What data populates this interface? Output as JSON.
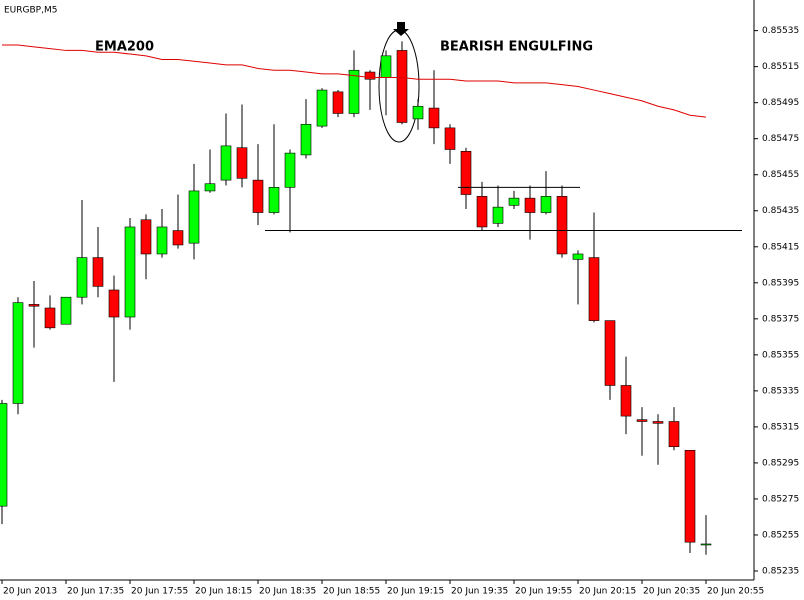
{
  "chart_data": {
    "type": "candlestick",
    "title": "EURGBP,M5",
    "categories": [
      "20 Jun 2013",
      null,
      null,
      null,
      "20 Jun 17:35",
      null,
      null,
      null,
      "20 Jun 17:55",
      null,
      null,
      null,
      "20 Jun 18:15",
      null,
      null,
      null,
      "20 Jun 18:35",
      null,
      null,
      null,
      "20 Jun 18:55",
      null,
      null,
      null,
      "20 Jun 19:15",
      null,
      null,
      null,
      "20 Jun 19:35",
      null,
      null,
      null,
      "20 Jun 19:55",
      null,
      null,
      null,
      "20 Jun 20:15",
      null,
      null,
      null,
      "20 Jun 20:35",
      null,
      null,
      null,
      "20 Jun 20:55"
    ],
    "open": [
      0.85271,
      0.85328,
      0.85383,
      0.85381,
      0.85372,
      0.85387,
      0.85409,
      0.85391,
      0.85376,
      0.8543,
      0.85411,
      0.85424,
      0.85417,
      0.85446,
      0.85452,
      0.8547,
      0.85452,
      0.85434,
      0.85448,
      0.85466,
      0.85482,
      0.85501,
      0.85489,
      0.85512,
      0.85509,
      0.85524,
      0.85486,
      0.85492,
      0.85481,
      0.85468,
      0.85443,
      0.85428,
      0.85438,
      0.85442,
      0.85434,
      0.85443,
      0.85408,
      0.85409,
      0.85374,
      0.85338,
      0.85319,
      0.85318,
      0.85318,
      0.85302,
      0.8525
    ],
    "high": [
      0.8533,
      0.85387,
      0.85396,
      0.85388,
      0.85387,
      0.85441,
      0.85426,
      0.85399,
      0.85431,
      0.85433,
      0.85436,
      0.85444,
      0.85461,
      0.85469,
      0.85489,
      0.85494,
      0.85472,
      0.85483,
      0.85469,
      0.85497,
      0.85503,
      0.85502,
      0.85524,
      0.85513,
      0.85524,
      0.85529,
      0.85497,
      0.85513,
      0.85483,
      0.8547,
      0.85451,
      0.85449,
      0.85446,
      0.85449,
      0.85457,
      0.85449,
      0.85413,
      0.85434,
      0.85374,
      0.85354,
      0.85326,
      0.85322,
      0.85326,
      0.85302,
      0.85266
    ],
    "low": [
      0.85261,
      0.85322,
      0.85359,
      0.85369,
      0.85372,
      0.85383,
      0.85387,
      0.8534,
      0.85369,
      0.85397,
      0.85409,
      0.85414,
      0.85408,
      0.85445,
      0.85449,
      0.85448,
      0.85427,
      0.85433,
      0.85423,
      0.85464,
      0.85481,
      0.85487,
      0.85487,
      0.85491,
      0.85488,
      0.85483,
      0.8548,
      0.85472,
      0.85461,
      0.85436,
      0.85424,
      0.85426,
      0.85436,
      0.85419,
      0.85433,
      0.85409,
      0.85383,
      0.85373,
      0.8533,
      0.85311,
      0.85299,
      0.85294,
      0.85302,
      0.85245,
      0.85244
    ],
    "close": [
      0.85328,
      0.85384,
      0.85382,
      0.8537,
      0.85387,
      0.85409,
      0.85393,
      0.85376,
      0.85426,
      0.85411,
      0.85426,
      0.85416,
      0.85446,
      0.8545,
      0.85471,
      0.85453,
      0.85434,
      0.85448,
      0.85467,
      0.85483,
      0.85502,
      0.85489,
      0.85513,
      0.85508,
      0.85521,
      0.85484,
      0.85493,
      0.85481,
      0.85469,
      0.85444,
      0.85426,
      0.85437,
      0.85442,
      0.85434,
      0.85443,
      0.85411,
      0.85411,
      0.85374,
      0.85338,
      0.85321,
      0.85318,
      0.85317,
      0.85304,
      0.85251,
      0.8525
    ],
    "up_color": "#00ff00",
    "down_color": "#ff0000",
    "ema": {
      "label": "EMA200",
      "color": "#e00000",
      "values": [
        0.85527,
        0.85527,
        0.85526,
        0.85525,
        0.85524,
        0.85524,
        0.85523,
        0.85523,
        0.85522,
        0.85521,
        0.85519,
        0.85519,
        0.85518,
        0.85517,
        0.85516,
        0.85516,
        0.85514,
        0.85513,
        0.85513,
        0.85512,
        0.85511,
        0.85511,
        0.8551,
        0.85509,
        0.85509,
        0.85509,
        0.85508,
        0.85508,
        0.85508,
        0.85507,
        0.85507,
        0.85507,
        0.85506,
        0.85506,
        0.85506,
        0.85505,
        0.85504,
        0.85502,
        0.855,
        0.85498,
        0.85496,
        0.85493,
        0.85491,
        0.85488,
        0.85487
      ]
    },
    "levels": [
      0.85448,
      0.85424
    ],
    "annotation": "BEARISH ENGULFING",
    "ylim": [
      0.8523,
      0.85552
    ],
    "yticks": [
      0.85535,
      0.85515,
      0.85495,
      0.85475,
      0.85455,
      0.85435,
      0.85415,
      0.85395,
      0.85375,
      0.85355,
      0.85335,
      0.85315,
      0.85295,
      0.85275,
      0.85255,
      0.85235
    ]
  }
}
